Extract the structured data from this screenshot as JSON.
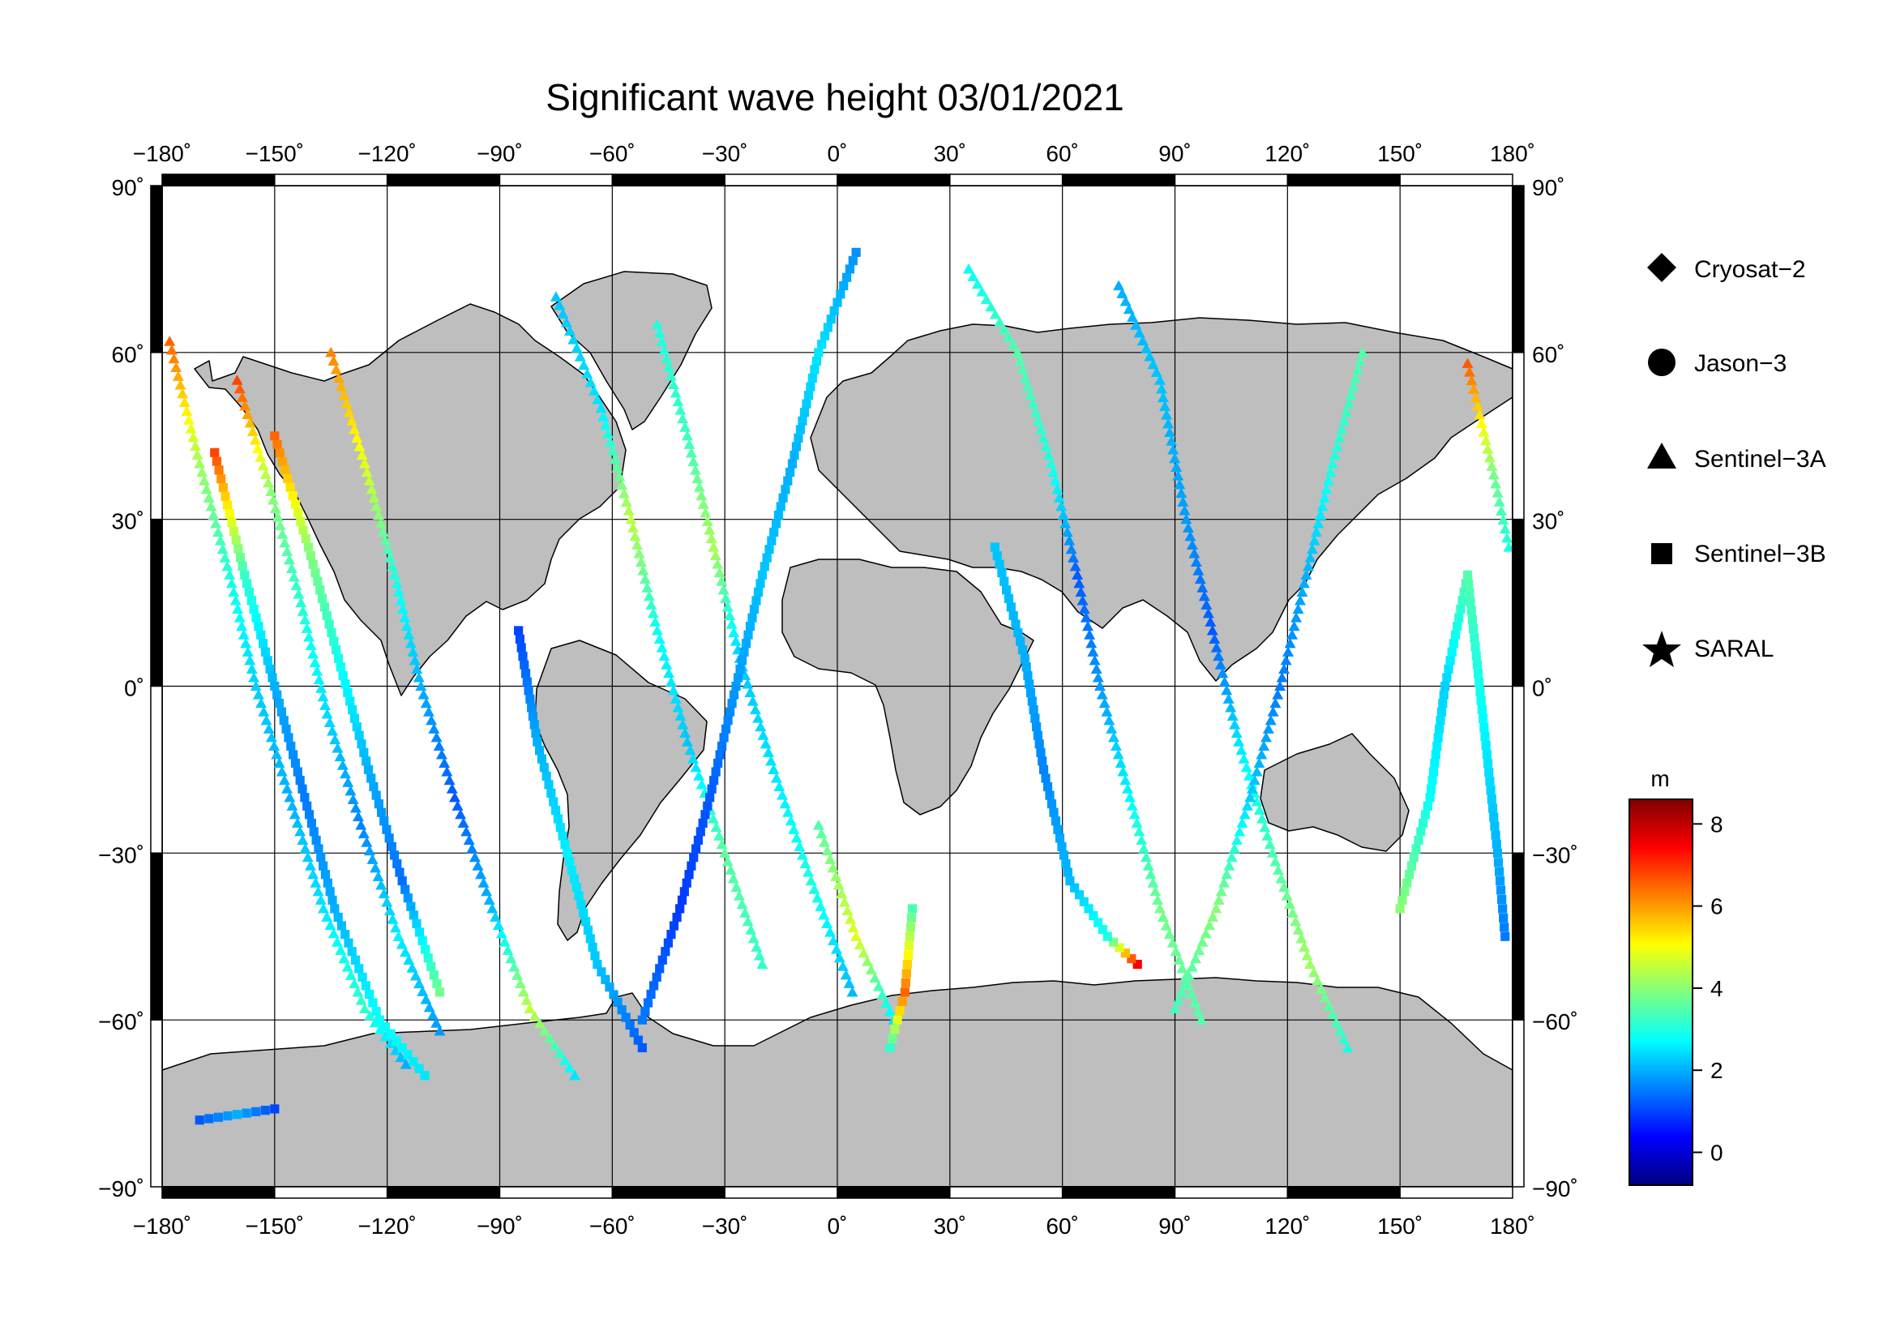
{
  "title": "Significant wave height 03/01/2021",
  "map": {
    "lon_range": [
      -180,
      180
    ],
    "lat_range": [
      -90,
      90
    ],
    "lon_ticks": [
      {
        "value": -180,
        "label": "−180˚"
      },
      {
        "value": -150,
        "label": "−150˚"
      },
      {
        "value": -120,
        "label": "−120˚"
      },
      {
        "value": -90,
        "label": "−90˚"
      },
      {
        "value": -60,
        "label": "−60˚"
      },
      {
        "value": -30,
        "label": "−30˚"
      },
      {
        "value": 0,
        "label": "0˚"
      },
      {
        "value": 30,
        "label": "30˚"
      },
      {
        "value": 60,
        "label": "60˚"
      },
      {
        "value": 90,
        "label": "90˚"
      },
      {
        "value": 120,
        "label": "120˚"
      },
      {
        "value": 150,
        "label": "150˚"
      },
      {
        "value": 180,
        "label": "180˚"
      }
    ],
    "lat_ticks": [
      {
        "value": 90,
        "label": "90˚"
      },
      {
        "value": 60,
        "label": "60˚"
      },
      {
        "value": 30,
        "label": "30˚"
      },
      {
        "value": 0,
        "label": "0˚"
      },
      {
        "value": -30,
        "label": "−30˚"
      },
      {
        "value": -60,
        "label": "−60˚"
      },
      {
        "value": -90,
        "label": "−90˚"
      }
    ],
    "land_color": "#bebebe",
    "ocean_color": "#ffffff",
    "grid": true
  },
  "legend": [
    {
      "label": "Cryosat−2",
      "shape": "diamond-icon"
    },
    {
      "label": "Jason−3",
      "shape": "circle-icon"
    },
    {
      "label": "Sentinel−3A",
      "shape": "triangle-icon"
    },
    {
      "label": "Sentinel−3B",
      "shape": "square-icon"
    },
    {
      "label": "SARAL",
      "shape": "star-icon"
    }
  ],
  "colorbar": {
    "unit": "m",
    "min": -0.8,
    "max": 8.6,
    "ticks": [
      {
        "value": 0,
        "label": "0"
      },
      {
        "value": 2,
        "label": "2"
      },
      {
        "value": 4,
        "label": "4"
      },
      {
        "value": 6,
        "label": "6"
      },
      {
        "value": 8,
        "label": "8"
      }
    ],
    "colormap": [
      "#00007f",
      "#0000ff",
      "#007fff",
      "#00ffff",
      "#7fff7f",
      "#ffff00",
      "#ff7f00",
      "#ff0000",
      "#7f0000"
    ]
  },
  "chart_data": {
    "type": "scatter",
    "title": "Significant wave height 03/01/2021",
    "xlabel": "",
    "ylabel": "",
    "xlim": [
      -180,
      180
    ],
    "ylim": [
      -90,
      90
    ],
    "value_unit": "m",
    "grid": true,
    "legend_position": "right",
    "series": [
      {
        "name": "Sentinel−3A",
        "marker": "triangle",
        "tracks": [
          {
            "points": [
              [
                -178,
                62,
                6.5
              ],
              [
                -170,
                40,
                4.2
              ],
              [
                -162,
                20,
                3.0
              ],
              [
                -155,
                0,
                2.3
              ],
              [
                -146,
                -20,
                2.0
              ],
              [
                -137,
                -40,
                2.5
              ],
              [
                -126,
                -58,
                3.2
              ],
              [
                -115,
                -68,
                2.0
              ]
            ]
          },
          {
            "points": [
              [
                -160,
                55,
                6.8
              ],
              [
                -151,
                35,
                4.0
              ],
              [
                -143,
                15,
                3.1
              ],
              [
                -136,
                -5,
                2.4
              ],
              [
                -127,
                -25,
                1.6
              ],
              [
                -117,
                -45,
                2.6
              ],
              [
                -106,
                -62,
                1.8
              ]
            ]
          },
          {
            "points": [
              [
                -135,
                60,
                6.2
              ],
              [
                -126,
                40,
                4.8
              ],
              [
                -118,
                20,
                3.0
              ],
              [
                -111,
                0,
                2.0
              ],
              [
                -102,
                -20,
                1.2
              ],
              [
                -92,
                -40,
                2.1
              ],
              [
                -82,
                -58,
                4.5
              ],
              [
                -70,
                -70,
                2.5
              ]
            ]
          },
          {
            "points": [
              [
                -48,
                65,
                3.0
              ],
              [
                -40,
                45,
                3.3
              ],
              [
                -33,
                25,
                4.3
              ],
              [
                -26,
                5,
                2.2
              ],
              [
                -17,
                -15,
                2.5
              ],
              [
                -7,
                -35,
                3.0
              ],
              [
                4,
                -55,
                2.1
              ]
            ]
          },
          {
            "points": [
              [
                -75,
                70,
                2.2
              ],
              [
                -63,
                50,
                2.5
              ],
              [
                -55,
                30,
                4.5
              ],
              [
                -48,
                10,
                2.8
              ],
              [
                -40,
                -10,
                2.2
              ],
              [
                -30,
                -30,
                3.6
              ],
              [
                -20,
                -50,
                3.2
              ]
            ]
          },
          {
            "points": [
              [
                35,
                75,
                2.8
              ],
              [
                48,
                60,
                3.5
              ],
              [
                57,
                40,
                3.0
              ],
              [
                64,
                20,
                1.2
              ],
              [
                70,
                0,
                1.8
              ],
              [
                78,
                -20,
                2.7
              ],
              [
                86,
                -40,
                3.8
              ],
              [
                97,
                -60,
                3.5
              ]
            ]
          },
          {
            "points": [
              [
                75,
                72,
                2.0
              ],
              [
                86,
                55,
                2.2
              ],
              [
                93,
                30,
                1.8
              ],
              [
                100,
                10,
                1.2
              ],
              [
                107,
                -10,
                2.5
              ],
              [
                116,
                -30,
                3.4
              ],
              [
                126,
                -50,
                4.2
              ],
              [
                136,
                -65,
                3.0
              ]
            ]
          },
          {
            "points": [
              [
                140,
                60,
                3.5
              ],
              [
                132,
                40,
                3.0
              ],
              [
                125,
                20,
                2.0
              ],
              [
                118,
                0,
                1.5
              ],
              [
                110,
                -20,
                2.3
              ],
              [
                101,
                -40,
                4.0
              ],
              [
                90,
                -58,
                3.3
              ]
            ]
          },
          {
            "points": [
              [
                168,
                58,
                6.6
              ],
              [
                175,
                38,
                3.8
              ],
              [
                179,
                25,
                3.0
              ]
            ]
          },
          {
            "points": [
              [
                -5,
                -25,
                3.5
              ],
              [
                5,
                -45,
                4.8
              ],
              [
                15,
                -60,
                2.5
              ]
            ]
          }
        ]
      },
      {
        "name": "Sentinel−3B",
        "marker": "square",
        "tracks": [
          {
            "points": [
              [
                -166,
                42,
                6.8
              ],
              [
                -158,
                20,
                3.2
              ],
              [
                -150,
                0,
                2.0
              ],
              [
                -142,
                -20,
                1.5
              ],
              [
                -134,
                -40,
                2.0
              ],
              [
                -122,
                -60,
                2.8
              ],
              [
                -110,
                -70,
                2.5
              ]
            ]
          },
          {
            "points": [
              [
                -150,
                45,
                6.5
              ],
              [
                -141,
                25,
                4.0
              ],
              [
                -133,
                5,
                2.9
              ],
              [
                -125,
                -15,
                2.0
              ],
              [
                -116,
                -35,
                1.4
              ],
              [
                -106,
                -55,
                3.8
              ]
            ]
          },
          {
            "points": [
              [
                -85,
                10,
                1.0
              ],
              [
                -80,
                -10,
                2.0
              ],
              [
                -72,
                -30,
                2.6
              ],
              [
                -64,
                -50,
                2.2
              ],
              [
                -52,
                -65,
                1.2
              ]
            ]
          },
          {
            "points": [
              [
                5,
                78,
                1.7
              ],
              [
                -5,
                60,
                2.5
              ],
              [
                -12,
                40,
                2.0
              ],
              [
                -20,
                20,
                2.2
              ],
              [
                -27,
                0,
                1.8
              ],
              [
                -34,
                -20,
                1.2
              ],
              [
                -42,
                -40,
                0.9
              ],
              [
                -52,
                -60,
                1.5
              ]
            ]
          },
          {
            "points": [
              [
                20,
                -40,
                3.4
              ],
              [
                18,
                -55,
                6.5
              ],
              [
                14,
                -65,
                3.2
              ]
            ]
          },
          {
            "points": [
              [
                80,
                -50,
                7.5
              ],
              [
                72,
                -45,
                3.0
              ],
              [
                62,
                -35,
                2.1
              ],
              [
                55,
                -15,
                1.6
              ],
              [
                50,
                5,
                2.0
              ],
              [
                42,
                25,
                2.2
              ]
            ]
          },
          {
            "points": [
              [
                150,
                -40,
                4.0
              ],
              [
                158,
                -20,
                2.8
              ],
              [
                162,
                0,
                2.3
              ],
              [
                168,
                20,
                3.5
              ],
              [
                176,
                -30,
                2.0
              ],
              [
                178,
                -45,
                1.5
              ]
            ]
          },
          {
            "points": [
              [
                -170,
                -78,
                1.2
              ],
              [
                -160,
                -77,
                2.0
              ],
              [
                -150,
                -76,
                1.0
              ]
            ]
          }
        ]
      }
    ]
  }
}
